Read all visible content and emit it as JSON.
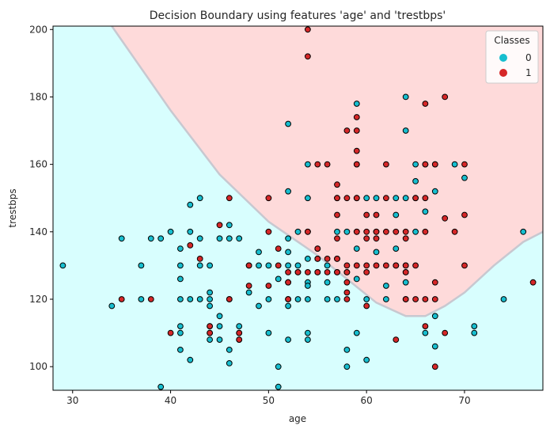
{
  "chart_data": {
    "type": "scatter",
    "title": "Decision Boundary using features 'age' and 'trestbps'",
    "xlabel": "age",
    "ylabel": "trestbps",
    "xlim": [
      28,
      78
    ],
    "ylim": [
      93,
      201
    ],
    "xticks": [
      30,
      40,
      50,
      60,
      70
    ],
    "yticks": [
      100,
      120,
      140,
      160,
      180,
      200
    ],
    "grid": false,
    "legend": {
      "title": "Classes",
      "position": "top-right",
      "entries": [
        "0",
        "1"
      ]
    },
    "colors": {
      "class0_marker": "#17becf",
      "class1_marker": "#d62728",
      "region0_fill": "#d8fefe",
      "region1_fill": "#fedada",
      "boundary": "#c8c8d0"
    },
    "boundary": [
      [
        34,
        201
      ],
      [
        40,
        176
      ],
      [
        45,
        157
      ],
      [
        50,
        143
      ],
      [
        55,
        133
      ],
      [
        58,
        126
      ],
      [
        61,
        119
      ],
      [
        64,
        115
      ],
      [
        66,
        115
      ],
      [
        68,
        118
      ],
      [
        70,
        122
      ],
      [
        73,
        130
      ],
      [
        76,
        137
      ],
      [
        78,
        140
      ]
    ],
    "series": [
      {
        "name": "0",
        "points": [
          [
            29,
            130
          ],
          [
            34,
            118
          ],
          [
            35,
            138
          ],
          [
            37,
            120
          ],
          [
            37,
            130
          ],
          [
            38,
            138
          ],
          [
            39,
            138
          ],
          [
            39,
            94
          ],
          [
            40,
            140
          ],
          [
            41,
            135
          ],
          [
            41,
            130
          ],
          [
            41,
            126
          ],
          [
            41,
            120
          ],
          [
            41,
            112
          ],
          [
            41,
            110
          ],
          [
            41,
            105
          ],
          [
            42,
            140
          ],
          [
            42,
            148
          ],
          [
            42,
            120
          ],
          [
            42,
            102
          ],
          [
            43,
            150
          ],
          [
            43,
            138
          ],
          [
            43,
            130
          ],
          [
            43,
            120
          ],
          [
            44,
            130
          ],
          [
            44,
            122
          ],
          [
            44,
            120
          ],
          [
            44,
            118
          ],
          [
            44,
            112
          ],
          [
            44,
            110
          ],
          [
            44,
            108
          ],
          [
            45,
            138
          ],
          [
            45,
            115
          ],
          [
            45,
            112
          ],
          [
            45,
            108
          ],
          [
            46,
            142
          ],
          [
            46,
            138
          ],
          [
            46,
            120
          ],
          [
            46,
            105
          ],
          [
            46,
            101
          ],
          [
            47,
            138
          ],
          [
            47,
            112
          ],
          [
            47,
            110
          ],
          [
            47,
            108
          ],
          [
            48,
            130
          ],
          [
            48,
            122
          ],
          [
            49,
            134
          ],
          [
            49,
            130
          ],
          [
            49,
            118
          ],
          [
            50,
            130
          ],
          [
            50,
            120
          ],
          [
            50,
            110
          ],
          [
            51,
            126
          ],
          [
            51,
            100
          ],
          [
            51,
            94
          ],
          [
            52,
            138
          ],
          [
            52,
            134
          ],
          [
            52,
            130
          ],
          [
            52,
            125
          ],
          [
            52,
            120
          ],
          [
            52,
            118
          ],
          [
            52,
            172
          ],
          [
            52,
            152
          ],
          [
            52,
            108
          ],
          [
            53,
            140
          ],
          [
            53,
            130
          ],
          [
            53,
            128
          ],
          [
            53,
            120
          ],
          [
            54,
            160
          ],
          [
            54,
            150
          ],
          [
            54,
            140
          ],
          [
            54,
            132
          ],
          [
            54,
            125
          ],
          [
            54,
            124
          ],
          [
            54,
            120
          ],
          [
            54,
            110
          ],
          [
            54,
            108
          ],
          [
            55,
            135
          ],
          [
            55,
            128
          ],
          [
            55,
            132
          ],
          [
            56,
            130
          ],
          [
            56,
            125
          ],
          [
            56,
            120
          ],
          [
            57,
            150
          ],
          [
            57,
            140
          ],
          [
            57,
            132
          ],
          [
            57,
            128
          ],
          [
            57,
            120
          ],
          [
            58,
            140
          ],
          [
            58,
            128
          ],
          [
            58,
            105
          ],
          [
            58,
            100
          ],
          [
            59,
            178
          ],
          [
            59,
            160
          ],
          [
            59,
            150
          ],
          [
            59,
            140
          ],
          [
            59,
            135
          ],
          [
            59,
            126
          ],
          [
            59,
            110
          ],
          [
            60,
            150
          ],
          [
            60,
            120
          ],
          [
            60,
            102
          ],
          [
            61,
            150
          ],
          [
            61,
            140
          ],
          [
            61,
            134
          ],
          [
            62,
            124
          ],
          [
            62,
            120
          ],
          [
            63,
            150
          ],
          [
            63,
            145
          ],
          [
            63,
            135
          ],
          [
            63,
            130
          ],
          [
            64,
            180
          ],
          [
            64,
            170
          ],
          [
            64,
            150
          ],
          [
            64,
            130
          ],
          [
            64,
            128
          ],
          [
            64,
            125
          ],
          [
            64,
            120
          ],
          [
            65,
            160
          ],
          [
            65,
            155
          ],
          [
            65,
            150
          ],
          [
            65,
            140
          ],
          [
            66,
            160
          ],
          [
            66,
            146
          ],
          [
            66,
            110
          ],
          [
            67,
            160
          ],
          [
            67,
            152
          ],
          [
            67,
            115
          ],
          [
            67,
            106
          ],
          [
            69,
            160
          ],
          [
            70,
            156
          ],
          [
            71,
            112
          ],
          [
            71,
            110
          ],
          [
            74,
            120
          ],
          [
            76,
            140
          ]
        ]
      },
      {
        "name": "1",
        "points": [
          [
            35,
            120
          ],
          [
            38,
            120
          ],
          [
            40,
            110
          ],
          [
            42,
            136
          ],
          [
            43,
            132
          ],
          [
            44,
            112
          ],
          [
            44,
            110
          ],
          [
            45,
            142
          ],
          [
            46,
            150
          ],
          [
            46,
            120
          ],
          [
            47,
            110
          ],
          [
            47,
            108
          ],
          [
            48,
            130
          ],
          [
            48,
            124
          ],
          [
            50,
            150
          ],
          [
            50,
            140
          ],
          [
            50,
            124
          ],
          [
            51,
            130
          ],
          [
            51,
            135
          ],
          [
            52,
            128
          ],
          [
            52,
            125
          ],
          [
            52,
            120
          ],
          [
            53,
            128
          ],
          [
            54,
            200
          ],
          [
            54,
            192
          ],
          [
            54,
            140
          ],
          [
            54,
            128
          ],
          [
            55,
            160
          ],
          [
            55,
            135
          ],
          [
            55,
            132
          ],
          [
            55,
            128
          ],
          [
            56,
            160
          ],
          [
            56,
            132
          ],
          [
            56,
            128
          ],
          [
            57,
            154
          ],
          [
            57,
            150
          ],
          [
            57,
            145
          ],
          [
            57,
            138
          ],
          [
            57,
            132
          ],
          [
            57,
            128
          ],
          [
            58,
            170
          ],
          [
            58,
            150
          ],
          [
            58,
            130
          ],
          [
            58,
            128
          ],
          [
            58,
            125
          ],
          [
            58,
            122
          ],
          [
            58,
            120
          ],
          [
            59,
            174
          ],
          [
            59,
            170
          ],
          [
            59,
            164
          ],
          [
            59,
            160
          ],
          [
            59,
            150
          ],
          [
            59,
            140
          ],
          [
            59,
            130
          ],
          [
            60,
            145
          ],
          [
            60,
            140
          ],
          [
            60,
            138
          ],
          [
            60,
            130
          ],
          [
            60,
            128
          ],
          [
            60,
            118
          ],
          [
            61,
            145
          ],
          [
            61,
            140
          ],
          [
            61,
            138
          ],
          [
            61,
            130
          ],
          [
            62,
            160
          ],
          [
            62,
            150
          ],
          [
            62,
            140
          ],
          [
            62,
            130
          ],
          [
            63,
            140
          ],
          [
            63,
            130
          ],
          [
            63,
            108
          ],
          [
            64,
            140
          ],
          [
            64,
            138
          ],
          [
            64,
            130
          ],
          [
            64,
            128
          ],
          [
            64,
            120
          ],
          [
            65,
            150
          ],
          [
            65,
            130
          ],
          [
            65,
            120
          ],
          [
            66,
            178
          ],
          [
            66,
            160
          ],
          [
            66,
            150
          ],
          [
            66,
            140
          ],
          [
            66,
            120
          ],
          [
            66,
            112
          ],
          [
            67,
            160
          ],
          [
            67,
            125
          ],
          [
            67,
            120
          ],
          [
            67,
            100
          ],
          [
            68,
            180
          ],
          [
            68,
            144
          ],
          [
            68,
            110
          ],
          [
            69,
            140
          ],
          [
            70,
            160
          ],
          [
            70,
            145
          ],
          [
            70,
            130
          ],
          [
            77,
            125
          ]
        ]
      }
    ]
  }
}
